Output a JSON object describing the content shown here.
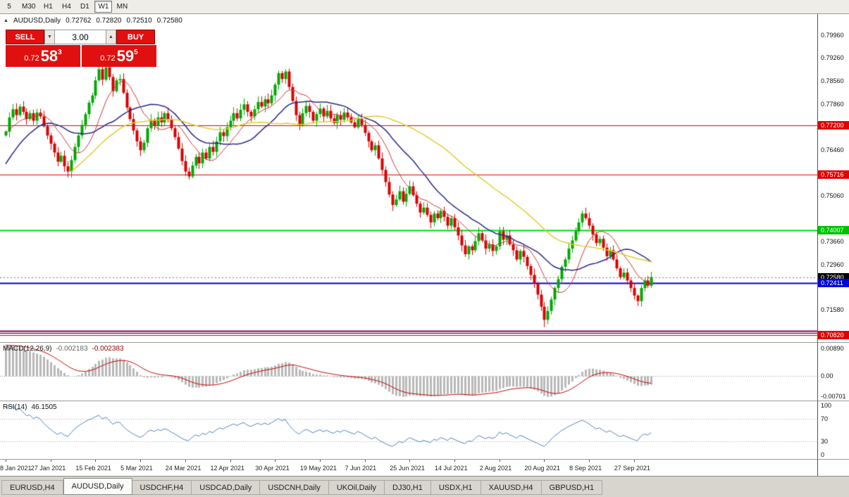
{
  "toolbar": {
    "timeframes": [
      {
        "label": "5",
        "active": false
      },
      {
        "label": "M30",
        "active": false
      },
      {
        "label": "H1",
        "active": false
      },
      {
        "label": "H4",
        "active": false
      },
      {
        "label": "D1",
        "active": false
      },
      {
        "label": "W1",
        "active": true
      },
      {
        "label": "MN",
        "active": false
      }
    ]
  },
  "icons": {
    "symbol_marker": "▲",
    "lot_down": "▼",
    "lot_up": "▲"
  },
  "header": {
    "symbol": "AUDUSD,Daily",
    "open": "0.72762",
    "high": "0.72820",
    "low": "0.72510",
    "close": "0.72580"
  },
  "trade_panel": {
    "sell_label": "SELL",
    "buy_label": "BUY",
    "lot_value": "3.00",
    "sell_price_prefix": "0.72",
    "sell_price_big": "58",
    "sell_price_sup": "3",
    "buy_price_prefix": "0.72",
    "buy_price_big": "59",
    "buy_price_sup": "5"
  },
  "macd_panel": {
    "label": "MACD(12,26,9)",
    "value": "-0.002183",
    "signal": "-0.002383",
    "axis": [
      {
        "text": "0.00890",
        "value": 0.0089
      },
      {
        "text": "0.00",
        "value": 0.0
      },
      {
        "text": "-0.00701",
        "value": -0.00701
      }
    ]
  },
  "rsi_panel": {
    "label": "RSI(14)",
    "value": "46.1505",
    "axis": [
      {
        "text": "100",
        "value": 100
      },
      {
        "text": "70",
        "value": 70
      },
      {
        "text": "30",
        "value": 30
      },
      {
        "text": "0",
        "value": 0
      }
    ]
  },
  "date_axis": [
    "8 Jan 2021",
    "27 Jan 2021",
    "15 Feb 2021",
    "5 Mar 2021",
    "24 Mar 2021",
    "12 Apr 2021",
    "30 Apr 2021",
    "19 May 2021",
    "7 Jun 2021",
    "25 Jun 2021",
    "14 Jul 2021",
    "2 Aug 2021",
    "20 Aug 2021",
    "8 Sep 2021",
    "27 Sep 2021"
  ],
  "tabs": [
    {
      "label": "EURUSD,H4",
      "active": false
    },
    {
      "label": "AUDUSD,Daily",
      "active": true
    },
    {
      "label": "USDCHF,H4",
      "active": false
    },
    {
      "label": "USDCAD,Daily",
      "active": false
    },
    {
      "label": "USDCNH,Daily",
      "active": false
    },
    {
      "label": "UKOil,Daily",
      "active": false
    },
    {
      "label": "DJ30,H1",
      "active": false
    },
    {
      "label": "USDX,H1",
      "active": false
    },
    {
      "label": "XAUUSD,H4",
      "active": false
    },
    {
      "label": "GBPUSD,H1",
      "active": false
    }
  ],
  "chart_data": {
    "type": "candlestick",
    "symbol": "AUDUSD",
    "period": "Daily",
    "y_range": [
      0.706,
      0.806
    ],
    "up_color": "#00a800",
    "down_color": "#dc0000",
    "axis_ticks": [
      {
        "text": "0.79960",
        "value": 0.7996
      },
      {
        "text": "0.79260",
        "value": 0.7926
      },
      {
        "text": "0.78560",
        "value": 0.7856
      },
      {
        "text": "0.77860",
        "value": 0.7786
      },
      {
        "text": "0.76460",
        "value": 0.7646
      },
      {
        "text": "0.75060",
        "value": 0.7506
      },
      {
        "text": "0.73660",
        "value": 0.7366
      },
      {
        "text": "0.72960",
        "value": 0.7296
      },
      {
        "text": "0.71580",
        "value": 0.7158
      }
    ],
    "price_badges": [
      {
        "text": "0.77200",
        "value": 0.772,
        "bg": "#e00000",
        "fg": "#ffffff"
      },
      {
        "text": "0.75716",
        "value": 0.75716,
        "bg": "#e00000",
        "fg": "#ffffff"
      },
      {
        "text": "0.74007",
        "value": 0.74007,
        "bg": "#00c000",
        "fg": "#ffffff"
      },
      {
        "text": "0.72580",
        "value": 0.7258,
        "bg": "#000000",
        "fg": "#ffffff"
      },
      {
        "text": "0.72411",
        "value": 0.72411,
        "bg": "#0000dd",
        "fg": "#ffffff"
      },
      {
        "text": "0.70820",
        "value": 0.7082,
        "bg": "#e00000",
        "fg": "#ffffff"
      }
    ],
    "levels": [
      {
        "value": 0.772,
        "color": "#e00000",
        "width": 1
      },
      {
        "value": 0.75716,
        "color": "#e00000",
        "width": 1
      },
      {
        "value": 0.74007,
        "color": "#00dd00",
        "width": 2
      },
      {
        "value": 0.72411,
        "color": "#0000dd",
        "width": 2
      },
      {
        "value": 0.7095,
        "color": "#800040",
        "width": 2
      },
      {
        "value": 0.7088,
        "color": "#000080",
        "width": 1
      },
      {
        "value": 0.7082,
        "color": "#e00000",
        "width": 1
      }
    ],
    "current_price": {
      "value": 0.7258,
      "color": "#777777"
    },
    "moving_averages": [
      {
        "period": 10,
        "color": "#cc3333",
        "width": 1
      },
      {
        "period": 21,
        "color": "#26268c",
        "width": 1.5
      },
      {
        "period": 50,
        "color": "#e3cc2e",
        "width": 1.5
      }
    ],
    "macd": {
      "fast": 12,
      "slow": 26,
      "signal": 9,
      "range_top": 0.0107,
      "range_bottom": -0.008,
      "hist_color": "#b8b8b8",
      "signal_color": "#cc0000"
    },
    "rsi": {
      "period": 14,
      "color": "#4f81bd",
      "levels": [
        70,
        30
      ]
    },
    "warmup_closes": [
      0.721,
      0.7232,
      0.7255,
      0.727,
      0.7292,
      0.731,
      0.7335,
      0.7355,
      0.7378,
      0.7398,
      0.7418,
      0.744,
      0.7458,
      0.7478,
      0.75,
      0.752,
      0.7542,
      0.756,
      0.758,
      0.7602,
      0.7622,
      0.764,
      0.766,
      0.7675,
      0.769,
      0.7705,
      0.7718,
      0.773,
      0.7722,
      0.771
    ],
    "closes": [
      0.7702,
      0.7745,
      0.777,
      0.7752,
      0.7778,
      0.7762,
      0.774,
      0.7758,
      0.7735,
      0.776,
      0.7748,
      0.7718,
      0.769,
      0.7665,
      0.7638,
      0.761,
      0.7628,
      0.7596,
      0.758,
      0.7615,
      0.7655,
      0.769,
      0.7722,
      0.7755,
      0.779,
      0.7812,
      0.7858,
      0.7892,
      0.786,
      0.7898,
      0.7868,
      0.7825,
      0.7858,
      0.7862,
      0.782,
      0.7775,
      0.774,
      0.7705,
      0.7672,
      0.7645,
      0.7668,
      0.7712,
      0.7738,
      0.772,
      0.7745,
      0.773,
      0.7758,
      0.774,
      0.7712,
      0.7685,
      0.765,
      0.7612,
      0.758,
      0.7565,
      0.7598,
      0.7625,
      0.7605,
      0.7638,
      0.762,
      0.7655,
      0.764,
      0.7672,
      0.77,
      0.7688,
      0.7715,
      0.7735,
      0.7758,
      0.7742,
      0.7768,
      0.7785,
      0.7762,
      0.7748,
      0.777,
      0.7792,
      0.7778,
      0.78,
      0.7788,
      0.7812,
      0.7845,
      0.788,
      0.7862,
      0.7885,
      0.7838,
      0.7795,
      0.7752,
      0.7722,
      0.7758,
      0.778,
      0.7762,
      0.7735,
      0.7755,
      0.7772,
      0.7748,
      0.7765,
      0.7742,
      0.7728,
      0.7752,
      0.7738,
      0.776,
      0.7745,
      0.773,
      0.7715,
      0.774,
      0.7722,
      0.7698,
      0.7672,
      0.7645,
      0.766,
      0.762,
      0.7585,
      0.7548,
      0.751,
      0.7478,
      0.7495,
      0.752,
      0.7488,
      0.7512,
      0.7535,
      0.7508,
      0.7482,
      0.7455,
      0.747,
      0.7448,
      0.7425,
      0.7452,
      0.7438,
      0.746,
      0.7442,
      0.7415,
      0.7438,
      0.741,
      0.7385,
      0.7355,
      0.7328,
      0.7352,
      0.734,
      0.7368,
      0.7392,
      0.737,
      0.7345,
      0.7358,
      0.7338,
      0.7352,
      0.7398,
      0.7372,
      0.7385,
      0.7358,
      0.734,
      0.7312,
      0.7338,
      0.732,
      0.7292,
      0.7265,
      0.7238,
      0.7205,
      0.7168,
      0.7128,
      0.7155,
      0.719,
      0.7225,
      0.7252,
      0.729,
      0.7312,
      0.7345,
      0.737,
      0.7398,
      0.7425,
      0.7452,
      0.7438,
      0.7415,
      0.7388,
      0.7362,
      0.7375,
      0.7348,
      0.7322,
      0.734,
      0.7312,
      0.7285,
      0.7258,
      0.7272,
      0.7248,
      0.7225,
      0.7202,
      0.7185,
      0.7225,
      0.7248,
      0.7232,
      0.7258
    ],
    "special_wicks": {
      "18": [
        null,
        0.7562
      ],
      "27": [
        0.7906,
        null
      ],
      "29": [
        0.7912,
        null
      ],
      "53": [
        null,
        0.7556
      ],
      "81": [
        0.7892,
        null
      ],
      "112": [
        null,
        0.746
      ],
      "156": [
        null,
        0.7106
      ],
      "183": [
        null,
        0.717
      ]
    }
  }
}
